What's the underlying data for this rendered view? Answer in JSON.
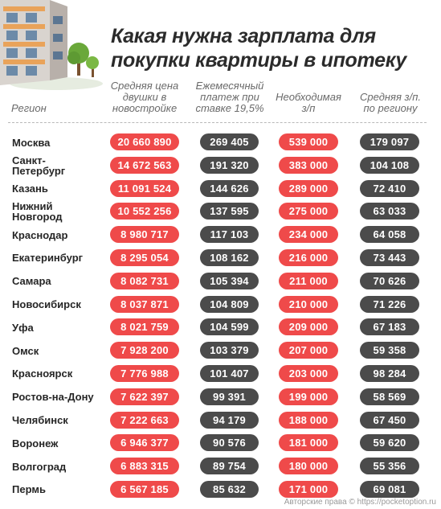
{
  "title": {
    "line1": "Какая нужна зарплата для",
    "line2": "покупки квартиры в ипотеку"
  },
  "headers": {
    "region": "Регион",
    "price_l1": "Средняя цена",
    "price_l2": "двушки в",
    "price_l3": "новостройке",
    "payment_l1": "Ежемесячный",
    "payment_l2": "платеж при",
    "payment_l3": "ставке 19,5%",
    "required_l1": "Необходимая",
    "required_l2": "з/п",
    "salary_l1": "Средняя з/п.",
    "salary_l2": "по региону"
  },
  "rows": [
    {
      "region": "Москва",
      "price": "20 660 890",
      "payment": "269 405",
      "required": "539 000",
      "salary": "179 097"
    },
    {
      "region": "Санкт-\nПетербург",
      "price": "14 672 563",
      "payment": "191 320",
      "required": "383 000",
      "salary": "104 108"
    },
    {
      "region": "Казань",
      "price": "11 091 524",
      "payment": "144 626",
      "required": "289 000",
      "salary": "72 410"
    },
    {
      "region": "Нижний\nНовгород",
      "price": "10 552 256",
      "payment": "137 595",
      "required": "275 000",
      "salary": "63 033"
    },
    {
      "region": "Краснодар",
      "price": "8 980 717",
      "payment": "117 103",
      "required": "234 000",
      "salary": "64 058"
    },
    {
      "region": "Екатеринбург",
      "price": "8 295 054",
      "payment": "108 162",
      "required": "216 000",
      "salary": "73 443"
    },
    {
      "region": "Самара",
      "price": "8 082 731",
      "payment": "105 394",
      "required": "211 000",
      "salary": "70 626"
    },
    {
      "region": "Новосибирск",
      "price": "8 037 871",
      "payment": "104 809",
      "required": "210 000",
      "salary": "71 226"
    },
    {
      "region": "Уфа",
      "price": "8 021 759",
      "payment": "104 599",
      "required": "209 000",
      "salary": "67 183"
    },
    {
      "region": "Омск",
      "price": "7 928 200",
      "payment": "103 379",
      "required": "207 000",
      "salary": "59 358"
    },
    {
      "region": "Красноярск",
      "price": "7 776 988",
      "payment": "101 407",
      "required": "203 000",
      "salary": "98 284"
    },
    {
      "region": "Ростов-на-Дону",
      "price": "7 622 397",
      "payment": "99 391",
      "required": "199 000",
      "salary": "58 569"
    },
    {
      "region": "Челябинск",
      "price": "7 222 663",
      "payment": "94 179",
      "required": "188 000",
      "salary": "67 450"
    },
    {
      "region": "Воронеж",
      "price": "6 946 377",
      "payment": "90 576",
      "required": "181 000",
      "salary": "59 620"
    },
    {
      "region": "Волгоград",
      "price": "6 883 315",
      "payment": "89 754",
      "required": "180 000",
      "salary": "55 356"
    },
    {
      "region": "Пермь",
      "price": "6 567 185",
      "payment": "85 632",
      "required": "171 000",
      "salary": "69 081"
    }
  ],
  "footer": "Авторские права © https://pocketoption.ru",
  "colors": {
    "price": "#ef4a4a",
    "payment": "#4b4b4b",
    "required": "#ef4a4a",
    "salary": "#4b4b4b"
  }
}
